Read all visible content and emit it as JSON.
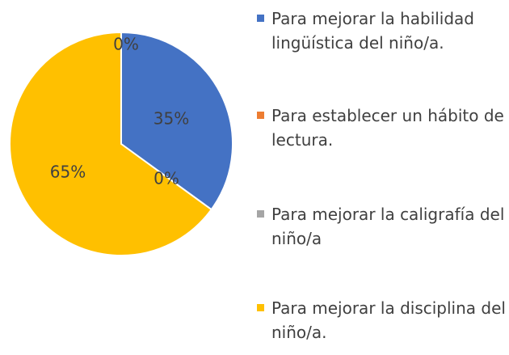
{
  "chart_data": {
    "type": "pie",
    "categories": [
      "Para mejorar la habilidad lingüística del niño/a.",
      "Para establecer un hábito de lectura.",
      "Para mejorar la caligrafía del niño/a",
      "Para mejorar la disciplina del niño/a."
    ],
    "values": [
      35,
      0,
      0,
      65
    ],
    "value_labels": [
      "35%",
      "0%",
      "0%",
      "65%"
    ],
    "colors": [
      "#4472c4",
      "#ed7d31",
      "#a5a5a5",
      "#ffc000"
    ],
    "legend": "right"
  }
}
